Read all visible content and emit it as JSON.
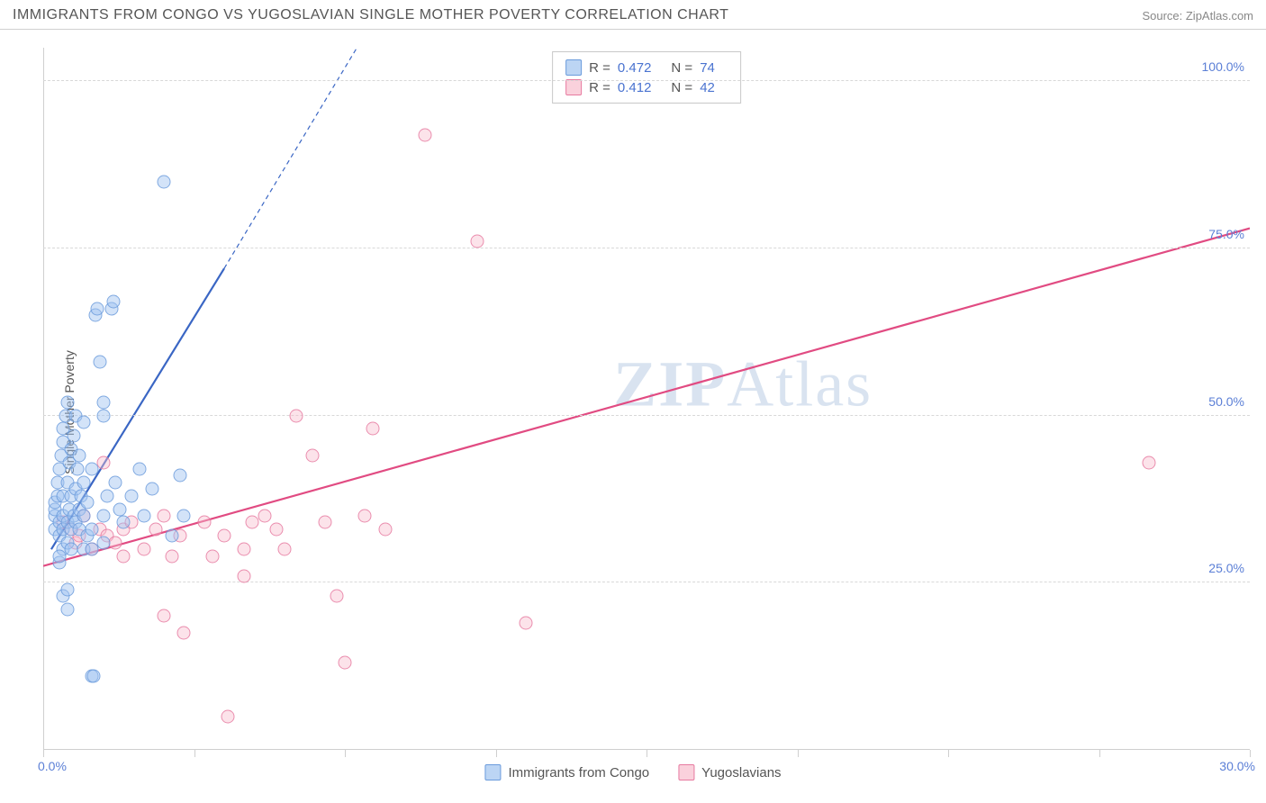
{
  "header": {
    "title": "IMMIGRANTS FROM CONGO VS YUGOSLAVIAN SINGLE MOTHER POVERTY CORRELATION CHART",
    "source": "Source: ZipAtlas.com"
  },
  "chart": {
    "type": "scatter",
    "ylabel": "Single Mother Poverty",
    "watermark": "ZIPAtlas",
    "xlim": [
      0,
      30
    ],
    "ylim": [
      0,
      105
    ],
    "y_ticks": [
      25,
      50,
      75,
      100
    ],
    "y_tick_labels": [
      "25.0%",
      "50.0%",
      "75.0%",
      "100.0%"
    ],
    "x_ticks": [
      0,
      3.75,
      7.5,
      11.25,
      15,
      18.75,
      22.5,
      26.25,
      30
    ],
    "x_tick_labels": {
      "0": "0.0%",
      "30": "30.0%"
    },
    "grid_color": "#d8d8d8",
    "background_color": "#ffffff",
    "axis_color": "#cfcfcf",
    "tick_label_color": "#5b7fd6",
    "series": {
      "congo": {
        "label": "Immigrants from Congo",
        "color_fill": "rgba(160,195,240,0.55)",
        "color_stroke": "#6a9bdc",
        "r_value": "0.472",
        "n_value": "74",
        "trend": {
          "x1": 0.2,
          "y1": 30,
          "x2": 4.5,
          "y2": 72,
          "dash_to_x": 7.8,
          "dash_to_y": 105,
          "color": "#3a66c4",
          "width": 2.2
        },
        "points": [
          [
            0.3,
            33
          ],
          [
            0.3,
            35
          ],
          [
            0.3,
            36
          ],
          [
            0.3,
            37
          ],
          [
            0.35,
            38
          ],
          [
            0.35,
            40
          ],
          [
            0.4,
            32
          ],
          [
            0.4,
            34
          ],
          [
            0.4,
            42
          ],
          [
            0.45,
            44
          ],
          [
            0.5,
            30
          ],
          [
            0.5,
            33
          ],
          [
            0.5,
            35
          ],
          [
            0.5,
            38
          ],
          [
            0.5,
            46
          ],
          [
            0.5,
            48
          ],
          [
            0.55,
            50
          ],
          [
            0.6,
            31
          ],
          [
            0.6,
            34
          ],
          [
            0.6,
            40
          ],
          [
            0.6,
            52
          ],
          [
            0.65,
            36
          ],
          [
            0.65,
            43
          ],
          [
            0.7,
            33
          ],
          [
            0.7,
            38
          ],
          [
            0.7,
            45
          ],
          [
            0.75,
            35
          ],
          [
            0.75,
            47
          ],
          [
            0.8,
            34
          ],
          [
            0.8,
            39
          ],
          [
            0.8,
            50
          ],
          [
            0.85,
            42
          ],
          [
            0.9,
            33
          ],
          [
            0.9,
            36
          ],
          [
            0.9,
            44
          ],
          [
            0.95,
            38
          ],
          [
            1.0,
            35
          ],
          [
            1.0,
            40
          ],
          [
            1.0,
            49
          ],
          [
            1.1,
            32
          ],
          [
            1.1,
            37
          ],
          [
            1.2,
            42
          ],
          [
            1.2,
            33
          ],
          [
            1.3,
            65
          ],
          [
            1.35,
            66
          ],
          [
            1.4,
            58
          ],
          [
            1.5,
            35
          ],
          [
            1.5,
            50
          ],
          [
            1.5,
            52
          ],
          [
            1.6,
            38
          ],
          [
            1.7,
            66
          ],
          [
            1.75,
            67
          ],
          [
            1.8,
            40
          ],
          [
            1.9,
            36
          ],
          [
            2.0,
            34
          ],
          [
            2.2,
            38
          ],
          [
            2.4,
            42
          ],
          [
            2.5,
            35
          ],
          [
            2.7,
            39
          ],
          [
            3.0,
            85
          ],
          [
            3.2,
            32
          ],
          [
            3.4,
            41
          ],
          [
            3.5,
            35
          ],
          [
            0.5,
            23
          ],
          [
            0.6,
            24
          ],
          [
            0.6,
            21
          ],
          [
            0.7,
            30
          ],
          [
            1.0,
            30
          ],
          [
            1.2,
            30
          ],
          [
            1.2,
            11
          ],
          [
            1.25,
            11
          ],
          [
            1.5,
            31
          ],
          [
            0.4,
            28
          ],
          [
            0.4,
            29
          ]
        ]
      },
      "yugo": {
        "label": "Yugoslavians",
        "color_fill": "rgba(248,190,205,0.5)",
        "color_stroke": "#e77aa0",
        "r_value": "0.412",
        "n_value": "42",
        "trend": {
          "x1": 0,
          "y1": 27.5,
          "x2": 30,
          "y2": 78,
          "color": "#e14b82",
          "width": 2.2
        },
        "points": [
          [
            0.5,
            34
          ],
          [
            0.7,
            33
          ],
          [
            0.8,
            31
          ],
          [
            0.9,
            32
          ],
          [
            1.0,
            35
          ],
          [
            1.2,
            30
          ],
          [
            1.4,
            33
          ],
          [
            1.5,
            43
          ],
          [
            1.6,
            32
          ],
          [
            1.8,
            31
          ],
          [
            2.0,
            33
          ],
          [
            2.0,
            29
          ],
          [
            2.2,
            34
          ],
          [
            2.5,
            30
          ],
          [
            2.8,
            33
          ],
          [
            3.0,
            35
          ],
          [
            3.0,
            20
          ],
          [
            3.2,
            29
          ],
          [
            3.4,
            32
          ],
          [
            3.5,
            17.5
          ],
          [
            4.0,
            34
          ],
          [
            4.2,
            29
          ],
          [
            4.5,
            32
          ],
          [
            4.6,
            5
          ],
          [
            5.0,
            26
          ],
          [
            5.0,
            30
          ],
          [
            5.2,
            34
          ],
          [
            5.5,
            35
          ],
          [
            5.8,
            33
          ],
          [
            6.0,
            30
          ],
          [
            6.3,
            50
          ],
          [
            6.7,
            44
          ],
          [
            7.0,
            34
          ],
          [
            7.3,
            23
          ],
          [
            7.5,
            13
          ],
          [
            8.0,
            35
          ],
          [
            8.2,
            48
          ],
          [
            8.5,
            33
          ],
          [
            9.5,
            92
          ],
          [
            10.8,
            76
          ],
          [
            12.0,
            19
          ],
          [
            27.5,
            43
          ]
        ]
      }
    },
    "legend_top": {
      "r_label": "R =",
      "n_label": "N =",
      "label_color": "#555555",
      "value_color": "#4a73d0"
    },
    "legend_bottom": [
      {
        "swatch": "blue",
        "label": "Immigrants from Congo"
      },
      {
        "swatch": "pink",
        "label": "Yugoslavians"
      }
    ]
  }
}
